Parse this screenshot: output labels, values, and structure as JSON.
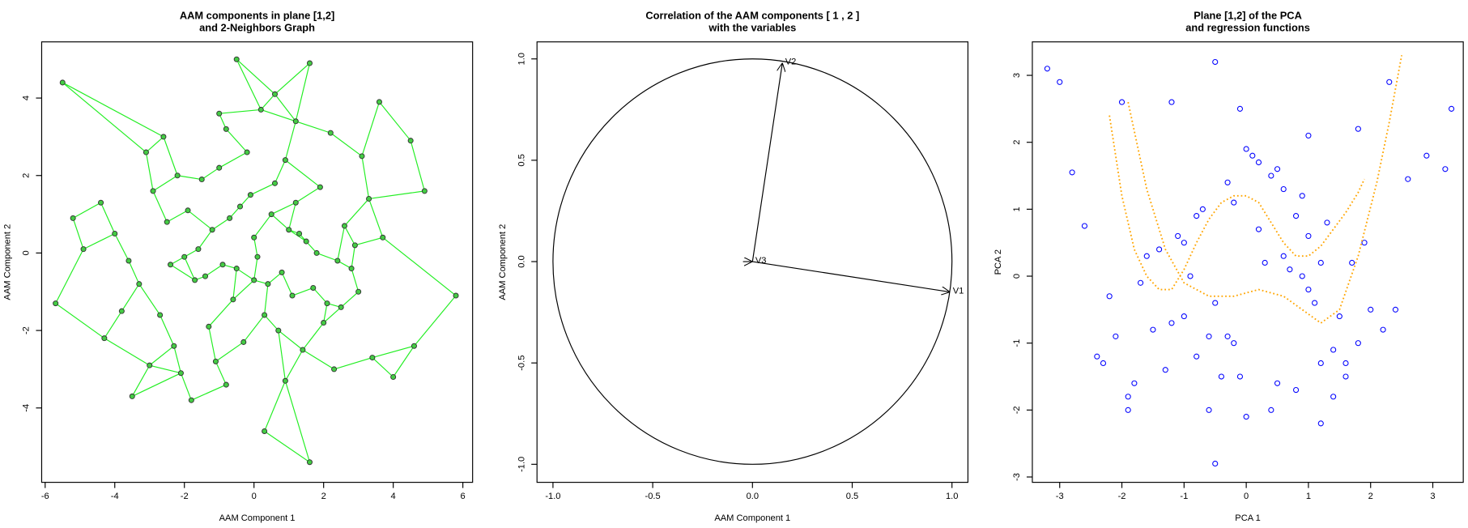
{
  "chart_data": [
    {
      "type": "scatter",
      "title": [
        "AAM components in plane [1,2]",
        "and 2-Neighbors Graph"
      ],
      "xlabel": "AAM Component 1",
      "ylabel": "AAM Component 2",
      "xlim": [
        -6.1,
        6.28
      ],
      "ylim": [
        -5.92,
        5.45
      ],
      "xticks": [
        -6,
        -4,
        -2,
        0,
        2,
        4,
        6
      ],
      "yticks": [
        -4,
        -2,
        0,
        2,
        4
      ],
      "color": "#44cc44",
      "edge_color": "#22ee22",
      "neighbors": 2,
      "x": [
        -5.5,
        -5.7,
        -5.2,
        -4.9,
        -3.5,
        1.6,
        -0.5,
        0.6,
        1.6,
        5.8,
        4.9,
        4.5,
        3.6,
        4.0,
        -1.8,
        0.3,
        4.6,
        -4.3,
        -3.1,
        -4.0,
        -3.8,
        -4.4,
        -2.6,
        -2.2,
        -1.0,
        -0.8,
        0.2,
        1.2,
        2.2,
        3.1,
        3.3,
        2.8,
        -2.9,
        -2.5,
        -1.5,
        -0.2,
        0.9,
        1.9,
        2.6,
        -3.3,
        -2.0,
        -1.2,
        -0.4,
        0.5,
        1.5,
        2.4,
        3.0,
        -2.7,
        -1.7,
        -0.9,
        0.0,
        0.8,
        1.7,
        2.5,
        -3.6,
        -2.3,
        -1.3,
        -0.6,
        0.3,
        1.1,
        2.0,
        3.4,
        -2.1,
        -1.1,
        -0.3,
        0.7,
        1.4,
        2.3,
        -1.6,
        -0.7,
        0.1,
        1.0,
        1.8,
        -1.4,
        -0.5,
        0.4,
        1.3,
        -0.1,
        0.6,
        -1.0,
        1.2,
        -2.4,
        2.9,
        -3.0,
        3.7,
        -0.8,
        0.9,
        -1.9,
        2.1,
        0.0
      ],
      "values": [
        4.4,
        -1.3,
        0.9,
        0.1,
        -3.7,
        4.9,
        5.0,
        4.1,
        -5.4,
        -1.1,
        1.6,
        2.9,
        3.9,
        -3.2,
        -3.8,
        -4.6,
        -2.4,
        -2.2,
        2.6,
        0.5,
        -1.5,
        1.3,
        3.0,
        2.0,
        3.6,
        3.2,
        3.7,
        3.4,
        3.1,
        2.5,
        1.4,
        -0.4,
        1.6,
        0.8,
        1.9,
        2.6,
        2.4,
        1.7,
        0.7,
        -0.8,
        -0.1,
        0.6,
        1.2,
        1.0,
        0.3,
        -0.2,
        -1.0,
        -1.6,
        -0.7,
        -0.3,
        0.4,
        -0.5,
        -0.9,
        -1.4,
        -0.2,
        -2.4,
        -1.9,
        -1.2,
        -1.6,
        -1.1,
        -1.8,
        -2.7,
        -3.1,
        -2.8,
        -2.3,
        -2.0,
        -2.5,
        -3.0,
        0.1,
        0.9,
        -0.1,
        0.6,
        0.0,
        -0.6,
        -0.4,
        -0.8,
        0.5,
        1.5,
        1.8,
        2.2,
        1.3,
        -0.3,
        0.2,
        -2.9,
        0.4,
        -3.4,
        -3.3,
        1.1,
        -1.3,
        -0.7
      ]
    },
    {
      "type": "vector",
      "title": [
        "Correlation of the AAM components [ 1 , 2 ]",
        "with the variables"
      ],
      "xlabel": "AAM Component 1",
      "ylabel": "AAM Component 2",
      "xlim": [
        -1.08,
        1.08
      ],
      "ylim": [
        -1.089,
        1.084
      ],
      "xticks": [
        {
          "value": -1,
          "label": "-1.0"
        },
        -0.5,
        {
          "value": 0,
          "label": "0.0"
        },
        0.5,
        {
          "value": 1,
          "label": "1.0"
        }
      ],
      "yticks": [
        {
          "value": -1,
          "label": "-1.0"
        },
        -0.5,
        {
          "value": 0,
          "label": "0.0"
        },
        0.5,
        {
          "value": 1,
          "label": "1.0"
        }
      ],
      "color": "#000000",
      "vectors": [
        {
          "name": "V1",
          "x": 0.99,
          "y": -0.15
        },
        {
          "name": "V2",
          "x": 0.15,
          "y": 0.98
        },
        {
          "name": "V3",
          "x": 0.0,
          "y": 0.0
        }
      ]
    },
    {
      "type": "scatter_curves",
      "title": [
        "Plane [1,2] of the PCA",
        "and regression functions"
      ],
      "xlabel": "PCA 1",
      "ylabel": "PCA 2",
      "xlim": [
        -3.44,
        3.49
      ],
      "ylim": [
        -3.08,
        3.5
      ],
      "xticks": [
        -3,
        -2,
        -1,
        0,
        1,
        2,
        3
      ],
      "yticks": [
        -3,
        -2,
        -1,
        0,
        1,
        2,
        3
      ],
      "color": "#0000ff",
      "x": [
        -3.2,
        -3.0,
        -0.5,
        3.3,
        3.2,
        -0.5,
        -2.8,
        -2.6,
        2.3,
        2.9,
        -2.0,
        -1.9,
        -1.2,
        -0.1,
        1.0,
        1.8,
        2.6,
        -2.3,
        -2.1,
        -1.8,
        -1.5,
        -1.3,
        -1.0,
        -0.8,
        -0.6,
        -0.4,
        -0.2,
        0.0,
        0.2,
        0.4,
        0.6,
        0.8,
        1.0,
        1.2,
        1.4,
        1.6,
        1.8,
        2.0,
        -1.6,
        -1.1,
        -0.7,
        -0.3,
        0.1,
        0.5,
        0.9,
        1.3,
        1.7,
        2.2,
        -2.2,
        -1.7,
        -1.4,
        -0.9,
        -0.5,
        0.3,
        0.7,
        1.1,
        1.5,
        1.9,
        -0.8,
        -0.2,
        0.2,
        0.6,
        1.0,
        -0.6,
        0.0,
        0.4,
        0.8,
        1.2,
        -1.2,
        1.4,
        -0.3,
        0.5,
        -1.9,
        2.4,
        -2.4,
        1.6,
        -1.0,
        0.9,
        -0.1,
        1.2
      ],
      "values": [
        3.1,
        2.9,
        3.2,
        2.5,
        1.6,
        -2.8,
        1.55,
        0.75,
        2.9,
        1.8,
        2.6,
        -2.0,
        2.6,
        2.5,
        2.1,
        2.2,
        1.45,
        -1.3,
        -0.9,
        -1.6,
        -0.8,
        -1.4,
        -0.6,
        -1.2,
        -0.9,
        -1.5,
        -1.0,
        1.9,
        1.7,
        1.5,
        1.3,
        0.9,
        0.6,
        -1.3,
        -1.8,
        -1.5,
        -1.0,
        -0.5,
        0.3,
        0.6,
        1.0,
        1.4,
        1.8,
        1.6,
        1.2,
        0.8,
        0.2,
        -0.8,
        -0.3,
        -0.1,
        0.4,
        0.0,
        -0.4,
        0.2,
        0.1,
        -0.4,
        -0.6,
        0.5,
        0.9,
        1.1,
        0.7,
        0.3,
        -0.2,
        -2.0,
        -2.1,
        -2.0,
        -1.7,
        -2.2,
        -0.7,
        -1.1,
        -0.9,
        -1.6,
        -1.8,
        -0.5,
        -1.2,
        -1.3,
        0.5,
        0.0,
        -1.5,
        0.2
      ],
      "lines": [
        {
          "color": "#ffa500",
          "x": [
            -2.2,
            -2.0,
            -1.8,
            -1.6,
            -1.4,
            -1.2,
            -1.0,
            -0.8,
            -0.6,
            -0.4,
            -0.2,
            0.0,
            0.2,
            0.4,
            0.6,
            0.8,
            1.0,
            1.2,
            1.4,
            1.6,
            1.8,
            1.9
          ],
          "values": [
            2.4,
            1.2,
            0.4,
            0.0,
            -0.2,
            -0.2,
            0.1,
            0.5,
            0.85,
            1.1,
            1.2,
            1.2,
            1.1,
            0.8,
            0.5,
            0.3,
            0.3,
            0.45,
            0.7,
            0.95,
            1.25,
            1.45
          ]
        },
        {
          "color": "#ffa500",
          "x": [
            -1.9,
            -1.6,
            -1.3,
            -1.0,
            -0.6,
            -0.2,
            0.2,
            0.6,
            0.9,
            1.2,
            1.5,
            1.8,
            2.1,
            2.3,
            2.5
          ],
          "values": [
            2.6,
            1.3,
            0.4,
            -0.1,
            -0.3,
            -0.3,
            -0.2,
            -0.3,
            -0.5,
            -0.7,
            -0.5,
            0.3,
            1.4,
            2.3,
            3.3
          ]
        }
      ]
    }
  ]
}
